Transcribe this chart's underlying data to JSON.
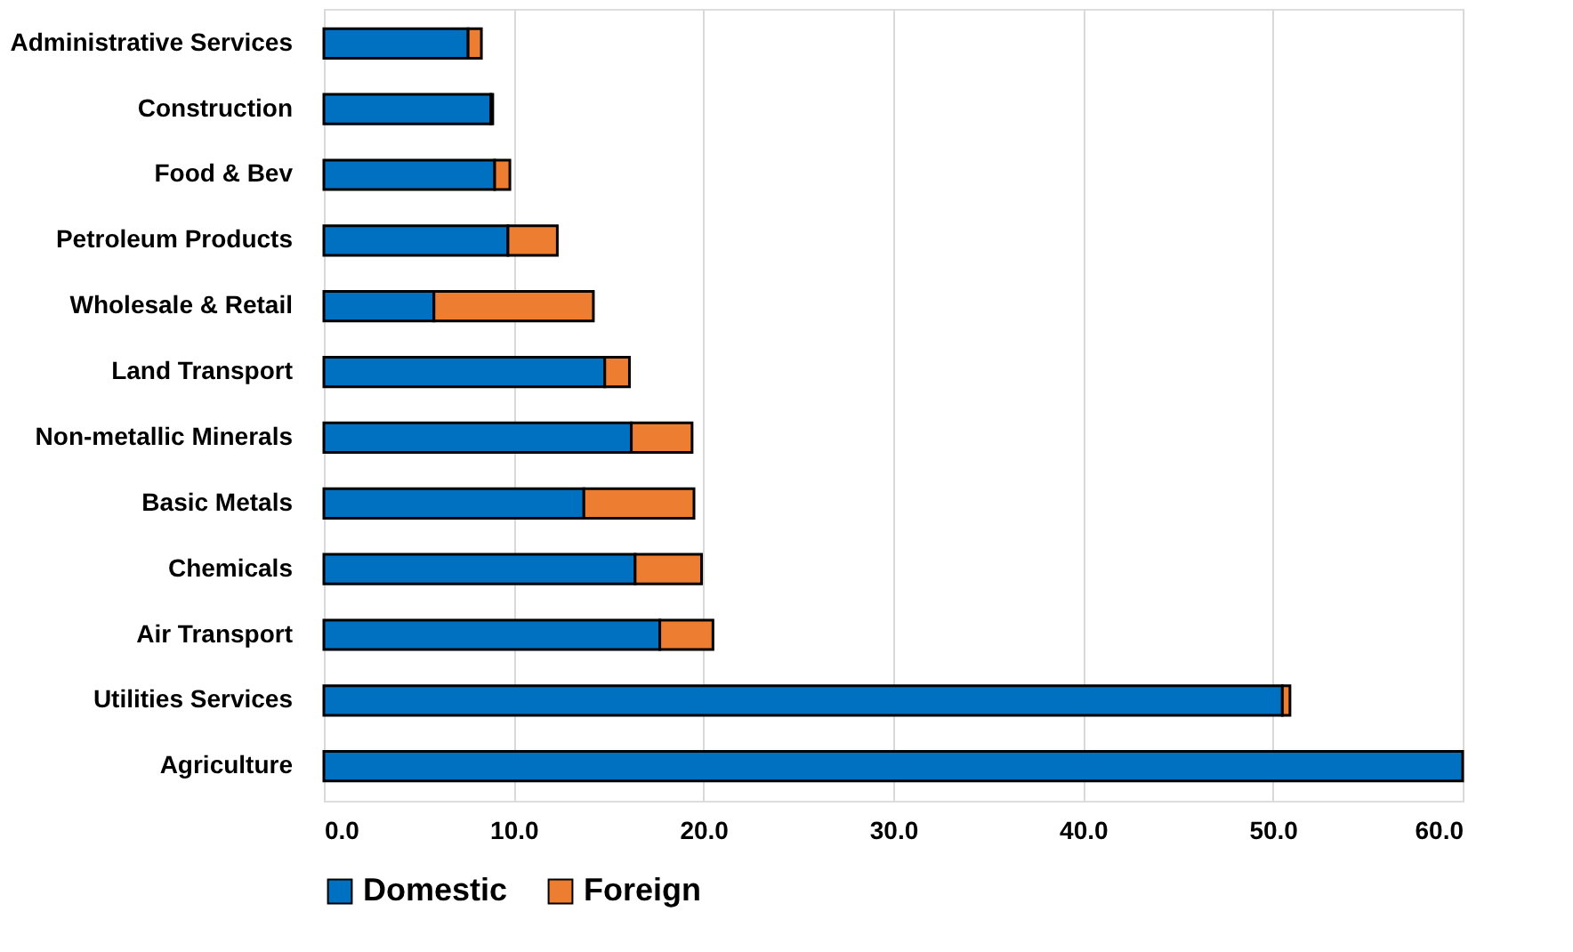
{
  "chart_data": {
    "type": "bar",
    "orientation": "horizontal",
    "stacked": true,
    "categories": [
      "Administrative Services",
      "Construction",
      "Food & Bev",
      "Petroleum Products",
      "Wholesale & Retail",
      "Land Transport",
      "Non-metallic Minerals",
      "Basic Metals",
      "Chemicals",
      "Air Transport",
      "Utilities Services",
      "Agriculture"
    ],
    "series": [
      {
        "name": "Domestic",
        "color": "#0070c0",
        "values": [
          7.6,
          8.8,
          9.0,
          9.7,
          5.8,
          14.8,
          16.2,
          13.7,
          16.4,
          17.7,
          50.5,
          60.0
        ]
      },
      {
        "name": "Foreign",
        "color": "#ed7d31",
        "values": [
          0.7,
          0.1,
          0.8,
          2.6,
          8.4,
          1.3,
          3.2,
          5.8,
          3.5,
          2.8,
          0.4,
          null
        ]
      }
    ],
    "xlim": [
      0,
      60
    ],
    "xticks": [
      {
        "value": 0,
        "label": "0.0"
      },
      {
        "value": 10,
        "label": "10.0"
      },
      {
        "value": 20,
        "label": "20.0"
      },
      {
        "value": 30,
        "label": "30.0"
      },
      {
        "value": 40,
        "label": "40.0"
      },
      {
        "value": 50,
        "label": "50.0"
      },
      {
        "value": 60,
        "label": "60.0"
      }
    ],
    "grid": "x",
    "legend": "bottom"
  }
}
